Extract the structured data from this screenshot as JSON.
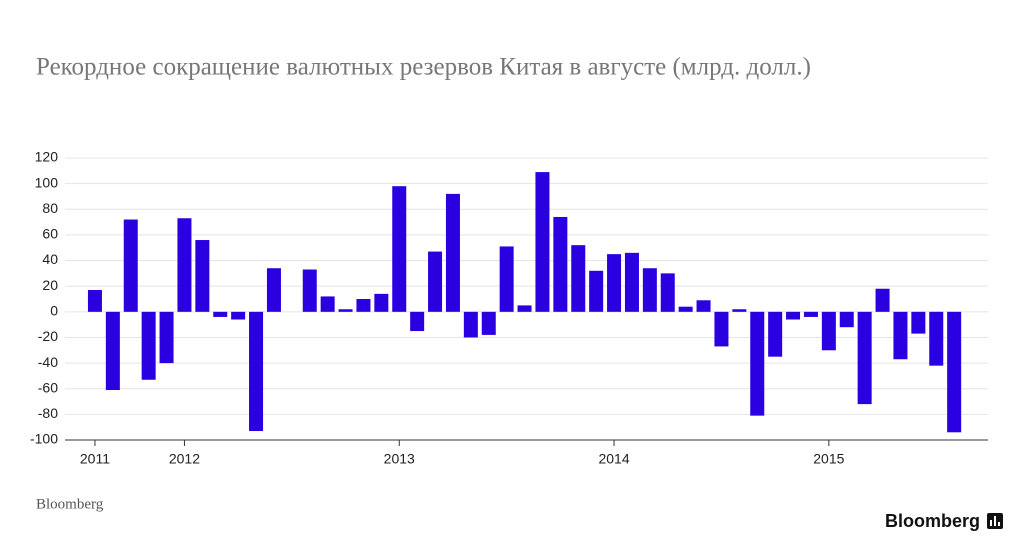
{
  "chart_data": {
    "type": "bar",
    "title": "Рекордное сокращение валютных резервов Китая в августе (млрд. долл.)",
    "source": "Bloomberg",
    "logo": "Bloomberg",
    "categories": [
      "2011",
      null,
      null,
      null,
      null,
      "2012",
      null,
      null,
      null,
      null,
      null,
      null,
      null,
      null,
      null,
      null,
      null,
      "2013",
      null,
      null,
      null,
      null,
      null,
      null,
      null,
      null,
      null,
      null,
      null,
      "2014",
      null,
      null,
      null,
      null,
      null,
      null,
      null,
      null,
      null,
      null,
      null,
      "2015",
      null,
      null,
      null,
      null,
      null,
      null,
      null
    ],
    "values": [
      17,
      -61,
      72,
      -53,
      -40,
      73,
      56,
      -4,
      -6,
      -93,
      34,
      0,
      33,
      12,
      2,
      10,
      14,
      98,
      -15,
      47,
      92,
      -20,
      -18,
      51,
      5,
      109,
      74,
      52,
      32,
      45,
      46,
      34,
      30,
      4,
      9,
      -27,
      2,
      -81,
      -35,
      -6,
      -4,
      -30,
      -12,
      -72,
      18,
      -37,
      -17,
      -42,
      -94
    ],
    "color": "#2a00e0",
    "ylim": [
      -100,
      120
    ],
    "yticks": [
      -100,
      -80,
      -60,
      -40,
      -20,
      0,
      20,
      40,
      60,
      80,
      100,
      120
    ],
    "grid": true
  }
}
